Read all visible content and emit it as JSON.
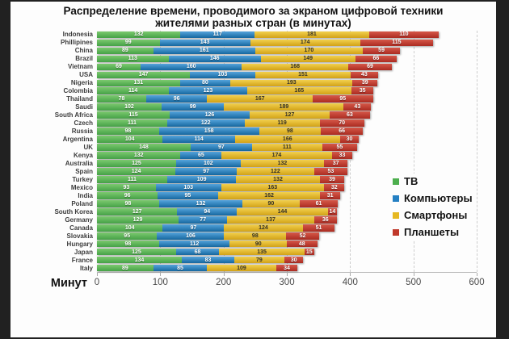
{
  "title": {
    "line1": "Распределение времени, проводимого за экраном цифровой техники",
    "line2": "жителями разных стран (в минутах)"
  },
  "axis": {
    "label": "Минут",
    "ticks": [
      0,
      100,
      200,
      300,
      400,
      500,
      600
    ]
  },
  "colors": {
    "tv": "#4daf4e",
    "computers": "#2580c3",
    "smartphones": "#e6b822",
    "tablets": "#c0392b",
    "background": "#fdfdfd",
    "frame": "#212121"
  },
  "chart_data": {
    "type": "bar",
    "orientation": "horizontal",
    "stacked": true,
    "title": "Распределение времени, проводимого за экраном цифровой техники жителями разных стран (в минутах)",
    "xlabel": "Минут",
    "ylabel": "",
    "xlim": [
      0,
      600
    ],
    "grid": "dashed-vertical",
    "legend_position": "right",
    "categories": [
      "Indonesia",
      "Phillipines",
      "China",
      "Brazil",
      "Vietnam",
      "USA",
      "Nigeria",
      "Colombia",
      "Thailand",
      "Saudi",
      "South Africa",
      "Czech",
      "Russia",
      "Argentina",
      "UK",
      "Kenya",
      "Australia",
      "Spain",
      "Turkey",
      "Mexico",
      "India",
      "Poland",
      "South Korea",
      "Germany",
      "Canada",
      "Slovakia",
      "Hungary",
      "Japan",
      "France",
      "Italy"
    ],
    "series": [
      {
        "key": "tv",
        "name": "ТВ",
        "color": "#4daf4e",
        "color_light": "#7cc96f",
        "color_dark": "#45a146",
        "text_color": "#ffffff",
        "white_text": true,
        "values": [
          132,
          99,
          89,
          113,
          69,
          147,
          131,
          114,
          78,
          102,
          115,
          111,
          98,
          104,
          148,
          132,
          125,
          124,
          111,
          93,
          96,
          98,
          127,
          129,
          104,
          95,
          98,
          125,
          134,
          89
        ]
      },
      {
        "key": "computers",
        "name": "Компьютеры",
        "color": "#2580c3",
        "color_light": "#55a4dc",
        "color_dark": "#15679f",
        "text_color": "#ffffff",
        "white_text": true,
        "values": [
          117,
          143,
          161,
          146,
          160,
          103,
          80,
          123,
          96,
          99,
          126,
          122,
          158,
          114,
          97,
          65,
          102,
          97,
          109,
          103,
          95,
          132,
          94,
          77,
          97,
          106,
          112,
          68,
          83,
          85
        ]
      },
      {
        "key": "smartphones",
        "name": "Смартфоны",
        "color": "#e6b822",
        "color_light": "#f2d04e",
        "color_dark": "#d2a217",
        "text_color": "#333028",
        "white_text": false,
        "values": [
          181,
          174,
          170,
          149,
          168,
          151,
          193,
          165,
          167,
          189,
          127,
          119,
          98,
          166,
          111,
          174,
          132,
          122,
          132,
          163,
          162,
          90,
          144,
          137,
          124,
          98,
          90,
          135,
          79,
          109
        ]
      },
      {
        "key": "tablets",
        "name": "Планшеты",
        "color": "#c0392b",
        "color_light": "#d65849",
        "color_dark": "#ab2b21",
        "text_color": "#ffffff",
        "white_text": true,
        "values": [
          110,
          115,
          59,
          66,
          69,
          43,
          39,
          35,
          95,
          43,
          63,
          70,
          66,
          30,
          55,
          33,
          37,
          53,
          39,
          32,
          31,
          61,
          14,
          36,
          51,
          52,
          48,
          15,
          30,
          34
        ]
      }
    ]
  }
}
